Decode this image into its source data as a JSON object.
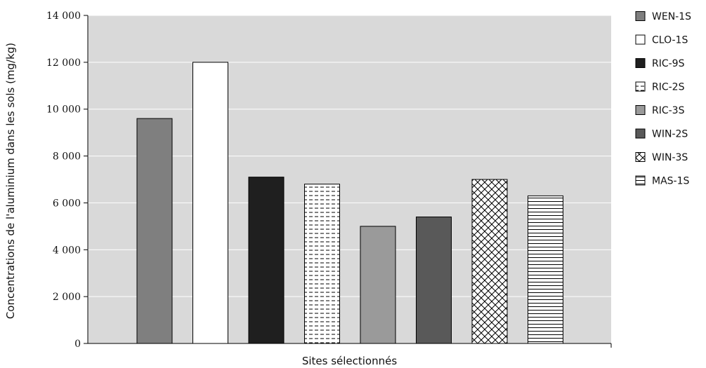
{
  "chart_data": {
    "type": "bar",
    "title": "",
    "xlabel": "Sites sélectionnés",
    "ylabel": "Concentrations de l'aluminium dans les sols (mg/kg)",
    "ylim": [
      0,
      14000
    ],
    "yticks": [
      0,
      2000,
      4000,
      6000,
      8000,
      10000,
      12000,
      14000
    ],
    "ytick_labels": [
      "0",
      "2 000",
      "4 000",
      "6 000",
      "8 000",
      "10 000",
      "12 000",
      "14 000"
    ],
    "grid": true,
    "legend_position": "right",
    "categories": [
      "WEN-1S",
      "CLO-1S",
      "RIC-9S",
      "RIC-2S",
      "RIC-3S",
      "WIN-2S",
      "WIN-3S",
      "MAS-1S"
    ],
    "values": [
      9600,
      12000,
      7100,
      6800,
      5000,
      5400,
      7000,
      6300
    ],
    "series": [
      {
        "name": "WEN-1S",
        "value": 9600,
        "color": "#7f7f7f",
        "pattern": "solid"
      },
      {
        "name": "CLO-1S",
        "value": 12000,
        "color": "#ffffff",
        "pattern": "solid"
      },
      {
        "name": "RIC-9S",
        "value": 7100,
        "color": "#1f1f1f",
        "pattern": "solid"
      },
      {
        "name": "RIC-2S",
        "value": 6800,
        "color": "#ffffff",
        "pattern": "dashed-horizontal"
      },
      {
        "name": "RIC-3S",
        "value": 5000,
        "color": "#9a9a9a",
        "pattern": "solid"
      },
      {
        "name": "WIN-2S",
        "value": 5400,
        "color": "#595959",
        "pattern": "solid"
      },
      {
        "name": "WIN-3S",
        "value": 7000,
        "color": "#ffffff",
        "pattern": "crosshatch"
      },
      {
        "name": "MAS-1S",
        "value": 6300,
        "color": "#ffffff",
        "pattern": "horizontal-lines"
      }
    ],
    "colors": {
      "plot_background": "#d9d9d9",
      "gridline": "#ffffff",
      "bar_outline": "#000000"
    }
  }
}
